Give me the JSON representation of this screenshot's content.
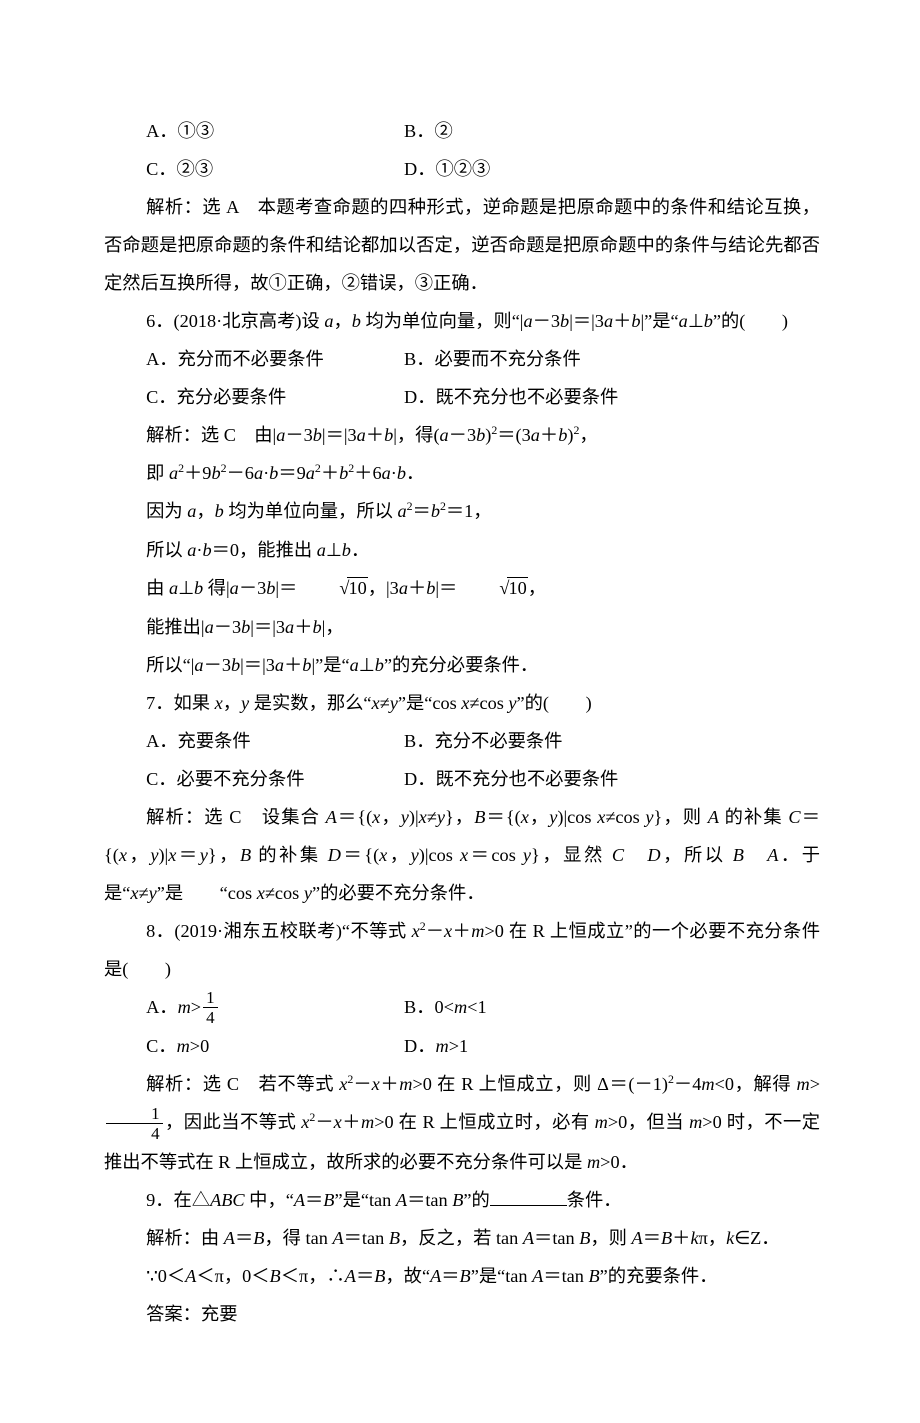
{
  "q5_opts": {
    "A": "A．①③",
    "B": "B．②",
    "C": "C．②③",
    "D": "D．①②③"
  },
  "q5_exp": "解析：选 A　本题考查命题的四种形式，逆命题是把原命题中的条件和结论互换，否命题是把原命题的条件和结论都加以否定，逆否命题是把原命题中的条件与结论先都否定然后互换所得，故①正确，②错误，③正确．",
  "q6": {
    "stem_pre": "6．(2018·北京高考)设 ",
    "stem_mid1": "a",
    "stem_mid2": "，",
    "stem_mid3": "b",
    "stem_mid4": " 均为单位向量，则“|",
    "stem_mid5": "a",
    "stem_mid6": "－3",
    "stem_mid7": "b",
    "stem_mid8": "|＝|3",
    "stem_mid9": "a",
    "stem_mid10": "＋",
    "stem_mid11": "b",
    "stem_mid12": "|”是“",
    "stem_mid13": "a",
    "stem_mid14": "⊥",
    "stem_mid15": "b",
    "stem_post": "”的(　　)",
    "opts": {
      "A": "A．充分而不必要条件",
      "B": "B．必要而不充分条件",
      "C": "C．充分必要条件",
      "D": "D．既不充分也不必要条件"
    },
    "exp1_pre": "解析：选 C　由|",
    "exp1_a": "a",
    "exp1_m1": "－3",
    "exp1_b": "b",
    "exp1_m2": "|＝|3",
    "exp1_a2": "a",
    "exp1_m3": "＋",
    "exp1_b2": "b",
    "exp1_m4": "|，得(",
    "exp1_a3": "a",
    "exp1_m5": "－3",
    "exp1_b3": "b",
    "exp1_m6": ")",
    "exp1_sq1": "2",
    "exp1_m7": "＝(3",
    "exp1_a4": "a",
    "exp1_m8": "＋",
    "exp1_b4": "b",
    "exp1_m9": ")",
    "exp1_sq2": "2",
    "exp1_post": "，",
    "exp2_pre": "即 ",
    "exp2": "a²＋9b²－6a·b＝9a²＋b²＋6a·b",
    "exp3_pre": "因为 ",
    "exp3_a": "a",
    "exp3_m1": "，",
    "exp3_b": "b",
    "exp3_m2": " 均为单位向量，所以 ",
    "exp3_a2": "a",
    "exp3_sq1": "2",
    "exp3_eq": "＝",
    "exp3_b2": "b",
    "exp3_sq2": "2",
    "exp3_post": "＝1，",
    "exp4_pre": "所以 ",
    "exp4_a": "a",
    "exp4_dot": "·",
    "exp4_b": "b",
    "exp4_eq": "＝0，能推出 ",
    "exp4_a2": "a",
    "exp4_perp": "⊥",
    "exp4_b2": "b",
    "exp4_post": "．",
    "exp5_pre": "由 ",
    "exp5_a": "a",
    "exp5_perp": "⊥",
    "exp5_b": "b",
    "exp5_m1": " 得|",
    "exp5_a2": "a",
    "exp5_m2": "－3",
    "exp5_b2": "b",
    "exp5_m3": "|＝",
    "exp5_sqrt1": "10",
    "exp5_m4": "，|3",
    "exp5_a3": "a",
    "exp5_m5": "＋",
    "exp5_b3": "b",
    "exp5_m6": "|＝",
    "exp5_sqrt2": "10",
    "exp5_post": "，",
    "exp6_pre": "能推出|",
    "exp6_a": "a",
    "exp6_m1": "－3",
    "exp6_b": "b",
    "exp6_m2": "|＝|3",
    "exp6_a2": "a",
    "exp6_m3": "＋",
    "exp6_b2": "b",
    "exp6_post": "|，",
    "exp7_pre": "所以“|",
    "exp7_a": "a",
    "exp7_m1": "－3",
    "exp7_b": "b",
    "exp7_m2": "|＝|3",
    "exp7_a2": "a",
    "exp7_m3": "＋",
    "exp7_b2": "b",
    "exp7_m4": "|”是“",
    "exp7_a3": "a",
    "exp7_perp": "⊥",
    "exp7_b3": "b",
    "exp7_post": "”的充分必要条件．"
  },
  "q7": {
    "stem_pre": "7．如果 ",
    "stem_x": "x",
    "stem_m1": "，",
    "stem_y": "y",
    "stem_m2": " 是实数，那么“",
    "stem_x2": "x",
    "stem_ne": "≠",
    "stem_y2": "y",
    "stem_m3": "”是“cos ",
    "stem_x3": "x",
    "stem_ne2": "≠cos ",
    "stem_y3": "y",
    "stem_post": "”的(　　)",
    "opts": {
      "A": "A．充要条件",
      "B": "B．充分不必要条件",
      "C": "C．必要不充分条件",
      "D": "D．既不充分也不必要条件"
    },
    "exp_p1": "解析：选 C　设集合 ",
    "exp_p2": "＝{(",
    "exp_p3": "，",
    "exp_p4": ")|",
    "exp_p5": "≠",
    "exp_p6": "}，",
    "exp_p7": "＝{(",
    "exp_p8": "，",
    "exp_p9": ")|cos ",
    "exp_p10": "≠cos ",
    "exp_p11": "}，则 ",
    "exp_p12": " 的补集 ",
    "exp_p13": "＝{(",
    "exp_p14": "，",
    "exp_p15": ")|",
    "exp_p16": "＝",
    "exp_p17": "}，",
    "exp_p18": " 的补集 ",
    "exp_p19": "＝{(",
    "exp_p20": "，",
    "exp_p21": ")|cos ",
    "exp_p22": "＝cos ",
    "exp_p23": "}，显然 ",
    "exp_p24": "　",
    "exp_p25": "，所以 ",
    "exp_p26": "　",
    "exp_p27": "．于是“",
    "exp_p28": "≠",
    "exp_p29": "”是　　“cos ",
    "exp_p30": "≠cos ",
    "exp_p31": "”的必要不充分条件．",
    "A": "A",
    "B": "B",
    "C": "C",
    "D": "D",
    "x": "x",
    "y": "y"
  },
  "q8": {
    "stem_pre": "8．(2019·湘东五校联考)“不等式 ",
    "stem_x": "x",
    "stem_sq": "2",
    "stem_m1": "－",
    "stem_x2": "x",
    "stem_m2": "＋",
    "stem_m": "m",
    "stem_m3": ">0 在 R 上恒成立”的一个必要不充分条件是(　　)",
    "opts": {
      "A_pre": "A．",
      "A_m": "m",
      "A_gt": ">",
      "A_frac_num": "1",
      "A_frac_den": "4",
      "B_pre": "B．0<",
      "B_m": "m",
      "B_post": "<1",
      "C_pre": "C．",
      "C_m": "m",
      "C_post": ">0",
      "D_pre": "D．",
      "D_m": "m",
      "D_post": ">1"
    },
    "exp_p1": "解析：选 C　若不等式 ",
    "exp_p2": "－",
    "exp_p3": "＋",
    "exp_p4": ">0 在 R 上恒成立，则 Δ＝(－1)",
    "exp_p5": "－4",
    "exp_p6": "<0，解得 ",
    "exp_p7": ">",
    "exp_frac_num": "1",
    "exp_frac_den": "4",
    "exp_p8": "，因此当不等式 ",
    "exp_p9": "－",
    "exp_p10": "＋",
    "exp_p11": ">0 在 R 上恒成立时，必有 ",
    "exp_p12": ">0，但当 ",
    "exp_p13": ">0 时，不一定推出不等式在 R 上恒成立，故所求的必要不充分条件可以是 ",
    "exp_p14": ">0．",
    "x": "x",
    "m": "m",
    "sq": "2"
  },
  "q9": {
    "stem_pre": "9．在△",
    "stem_ABC": "ABC",
    "stem_m1": " 中，“",
    "stem_A": "A",
    "stem_eq": "＝",
    "stem_B": "B",
    "stem_m2": "”是“tan ",
    "stem_A2": "A",
    "stem_eq2": "＝tan ",
    "stem_B2": "B",
    "stem_m3": "”的",
    "stem_post": "条件．",
    "exp_p1": "解析：由 ",
    "exp_A": "A",
    "exp_eq": "＝",
    "exp_B": "B",
    "exp_p2": "，得 tan ",
    "exp_A2": "A",
    "exp_p3": "＝tan ",
    "exp_B2": "B",
    "exp_p4": "，反之，若 tan ",
    "exp_A3": "A",
    "exp_p5": "＝tan ",
    "exp_B3": "B",
    "exp_p6": "，则 ",
    "exp_A4": "A",
    "exp_p7": "＝",
    "exp_B4": "B",
    "exp_p8": "＋",
    "exp_k": "k",
    "exp_pi": "π，",
    "exp_k2": "k",
    "exp_inZ": "∈Z．",
    "exp2_p1": "∵0＜",
    "exp2_A": "A",
    "exp2_p2": "＜π，0＜",
    "exp2_B": "B",
    "exp2_p3": "＜π，∴",
    "exp2_A2": "A",
    "exp2_p4": "＝",
    "exp2_B2": "B",
    "exp2_p5": "，故“",
    "exp2_A3": "A",
    "exp2_p6": "＝",
    "exp2_B3": "B",
    "exp2_p7": "”是“tan ",
    "exp2_A4": "A",
    "exp2_p8": "＝tan ",
    "exp2_B4": "B",
    "exp2_p9": "”的充要条件．",
    "ans": "答案：充要"
  }
}
